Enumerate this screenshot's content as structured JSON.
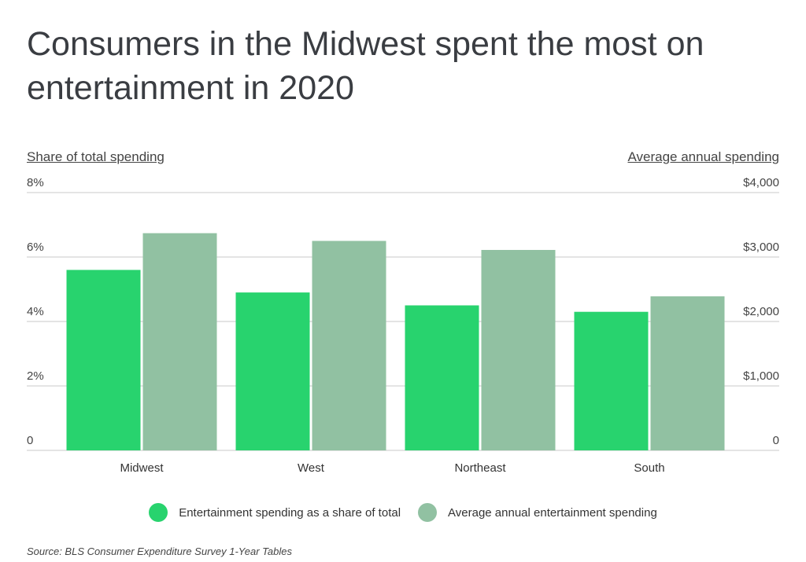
{
  "title": "Consumers in the Midwest spent the most on entertainment in 2020",
  "source": "Source:  BLS Consumer Expenditure Survey 1-Year Tables",
  "chart_data": {
    "type": "bar",
    "title": "Consumers in the Midwest spent the most on entertainment in 2020",
    "categories": [
      "Midwest",
      "West",
      "Northeast",
      "South"
    ],
    "left_axis": {
      "label": "Share of total spending",
      "range": [
        0,
        8
      ],
      "ticks": [
        "0",
        "2%",
        "4%",
        "6%",
        "8%"
      ],
      "tick_values": [
        0,
        2,
        4,
        6,
        8
      ]
    },
    "right_axis": {
      "label": "Average annual spending",
      "range": [
        0,
        4000
      ],
      "ticks": [
        "0",
        "$1,000",
        "$2,000",
        "$3,000",
        "$4,000"
      ],
      "tick_values": [
        0,
        1000,
        2000,
        3000,
        4000
      ]
    },
    "series": [
      {
        "name": "Entertainment spending as a share of total",
        "axis": "left",
        "unit": "%",
        "values": [
          5.6,
          4.9,
          4.5,
          4.3
        ],
        "color": "#28d36e"
      },
      {
        "name": "Average annual entertainment spending",
        "axis": "right",
        "unit": "$",
        "values": [
          3370,
          3250,
          3110,
          2390
        ],
        "color": "#91c1a2"
      }
    ],
    "grid": true,
    "legend": "bottom"
  }
}
